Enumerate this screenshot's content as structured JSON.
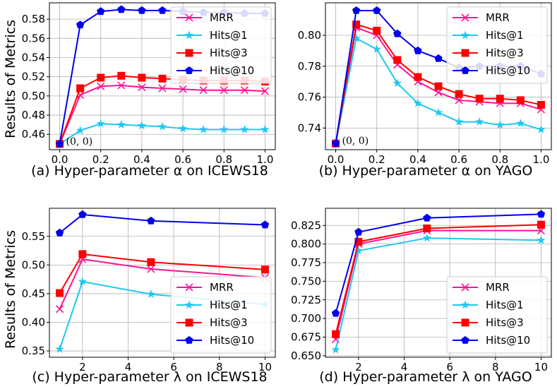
{
  "figure": {
    "ylabel": "Results of Metrics"
  },
  "chart_data": [
    {
      "type": "line",
      "caption": "(a) Hyper-parameter α on ICEWS18",
      "xlabel": "Hyper-parameter α",
      "ylabel": "Results of Metrics",
      "x": [
        0.0,
        0.1,
        0.2,
        0.3,
        0.4,
        0.5,
        0.6,
        0.7,
        0.8,
        0.9,
        1.0
      ],
      "xlim": [
        -0.05,
        1.05
      ],
      "ylim": [
        0.444,
        0.597
      ],
      "xticks": [
        0.0,
        0.2,
        0.4,
        0.6,
        0.8,
        1.0
      ],
      "xtick_labels": [
        "0.0",
        "0.2",
        "0.4",
        "0.6",
        "0.8",
        "1.0"
      ],
      "yticks": [
        0.46,
        0.48,
        0.5,
        0.52,
        0.54,
        0.56,
        0.58
      ],
      "ytick_labels": [
        "0.46",
        "0.48",
        "0.50",
        "0.52",
        "0.54",
        "0.56",
        "0.58"
      ],
      "series": [
        {
          "name": "MRR",
          "color": "#ff1493",
          "marker": "x",
          "values": [
            0.45,
            0.501,
            0.51,
            0.511,
            0.509,
            0.508,
            0.507,
            0.506,
            0.506,
            0.506,
            0.505
          ]
        },
        {
          "name": "Hits@1",
          "color": "#1ec8f0",
          "marker": "star",
          "values": [
            0.45,
            0.464,
            0.471,
            0.47,
            0.469,
            0.468,
            0.466,
            0.465,
            0.465,
            0.465,
            0.465
          ]
        },
        {
          "name": "Hits@3",
          "color": "#ff0000",
          "marker": "square",
          "values": [
            0.45,
            0.508,
            0.519,
            0.521,
            0.519,
            0.518,
            0.517,
            0.516,
            0.516,
            0.516,
            0.515
          ]
        },
        {
          "name": "Hits@10",
          "color": "#0000ee",
          "marker": "pentagon",
          "values": [
            0.45,
            0.574,
            0.588,
            0.59,
            0.589,
            0.589,
            0.588,
            0.587,
            0.587,
            0.586,
            0.586
          ]
        }
      ],
      "legend_position": "right",
      "annotation": {
        "text": "(0, 0)",
        "x": 0.0,
        "y": 0.45
      }
    },
    {
      "type": "line",
      "caption": "(b) Hyper-parameter α on YAGO",
      "xlabel": "Hyper-parameter α",
      "ylabel": "",
      "x": [
        0.0,
        0.1,
        0.2,
        0.3,
        0.4,
        0.5,
        0.6,
        0.7,
        0.8,
        0.9,
        1.0
      ],
      "xlim": [
        -0.05,
        1.05
      ],
      "ylim": [
        0.726,
        0.821
      ],
      "xticks": [
        0.0,
        0.2,
        0.4,
        0.6,
        0.8,
        1.0
      ],
      "xtick_labels": [
        "0.0",
        "0.2",
        "0.4",
        "0.6",
        "0.8",
        "1.0"
      ],
      "yticks": [
        0.74,
        0.76,
        0.78,
        0.8
      ],
      "ytick_labels": [
        "0.74",
        "0.76",
        "0.78",
        "0.80"
      ],
      "series": [
        {
          "name": "MRR",
          "color": "#ff1493",
          "marker": "x",
          "values": [
            0.73,
            0.805,
            0.8,
            0.781,
            0.77,
            0.763,
            0.758,
            0.757,
            0.756,
            0.756,
            0.752
          ]
        },
        {
          "name": "Hits@1",
          "color": "#1ec8f0",
          "marker": "star",
          "values": [
            0.73,
            0.798,
            0.791,
            0.769,
            0.756,
            0.75,
            0.744,
            0.744,
            0.742,
            0.743,
            0.739
          ]
        },
        {
          "name": "Hits@3",
          "color": "#ff0000",
          "marker": "square",
          "values": [
            0.73,
            0.807,
            0.803,
            0.784,
            0.773,
            0.767,
            0.762,
            0.759,
            0.759,
            0.758,
            0.755
          ]
        },
        {
          "name": "Hits@10",
          "color": "#0000ee",
          "marker": "pentagon",
          "values": [
            0.73,
            0.816,
            0.816,
            0.801,
            0.79,
            0.785,
            0.779,
            0.78,
            0.78,
            0.78,
            0.775
          ]
        }
      ],
      "legend_position": "right",
      "annotation": {
        "text": "(0, 0)",
        "x": 0.0,
        "y": 0.73
      }
    },
    {
      "type": "line",
      "caption": "(c) Hyper-parameter λ on ICEWS18",
      "xlabel": "Hyper-parameter λ",
      "ylabel": "Results of Metrics",
      "x": [
        1,
        2,
        5,
        10
      ],
      "xlim": [
        0.55,
        10.45
      ],
      "ylim": [
        0.339,
        0.599
      ],
      "xticks": [
        2,
        4,
        6,
        8,
        10
      ],
      "xtick_labels": [
        "2",
        "4",
        "6",
        "8",
        "10"
      ],
      "yticks": [
        0.35,
        0.4,
        0.45,
        0.5,
        0.55
      ],
      "ytick_labels": [
        "0.35",
        "0.40",
        "0.45",
        "0.50",
        "0.55"
      ],
      "series": [
        {
          "name": "MRR",
          "color": "#ff1493",
          "marker": "x",
          "values": [
            0.423,
            0.51,
            0.493,
            0.478
          ]
        },
        {
          "name": "Hits@1",
          "color": "#1ec8f0",
          "marker": "star",
          "values": [
            0.353,
            0.471,
            0.449,
            0.431
          ]
        },
        {
          "name": "Hits@3",
          "color": "#ff0000",
          "marker": "square",
          "values": [
            0.451,
            0.519,
            0.505,
            0.492
          ]
        },
        {
          "name": "Hits@10",
          "color": "#0000ee",
          "marker": "pentagon",
          "values": [
            0.556,
            0.588,
            0.577,
            0.57
          ]
        }
      ],
      "legend_position": "lower-right"
    },
    {
      "type": "line",
      "caption": "(d) Hyper-parameter λ on YAGO",
      "xlabel": "Hyper-parameter λ",
      "ylabel": "",
      "x": [
        1,
        2,
        5,
        10
      ],
      "xlim": [
        0.55,
        10.45
      ],
      "ylim": [
        0.648,
        0.848
      ],
      "xticks": [
        2,
        4,
        6,
        8,
        10
      ],
      "xtick_labels": [
        "2",
        "4",
        "6",
        "8",
        "10"
      ],
      "yticks": [
        0.65,
        0.675,
        0.7,
        0.725,
        0.75,
        0.775,
        0.8,
        0.825
      ],
      "ytick_labels": [
        "0.650",
        "0.675",
        "0.700",
        "0.725",
        "0.750",
        "0.775",
        "0.800",
        "0.825"
      ],
      "series": [
        {
          "name": "MRR",
          "color": "#ff1493",
          "marker": "x",
          "values": [
            0.672,
            0.8,
            0.818,
            0.818
          ]
        },
        {
          "name": "Hits@1",
          "color": "#1ec8f0",
          "marker": "star",
          "values": [
            0.658,
            0.791,
            0.808,
            0.805
          ]
        },
        {
          "name": "Hits@3",
          "color": "#ff0000",
          "marker": "square",
          "values": [
            0.679,
            0.803,
            0.821,
            0.826
          ]
        },
        {
          "name": "Hits@10",
          "color": "#0000ee",
          "marker": "pentagon",
          "values": [
            0.707,
            0.816,
            0.835,
            0.84
          ]
        }
      ],
      "legend_position": "lower-right"
    }
  ]
}
